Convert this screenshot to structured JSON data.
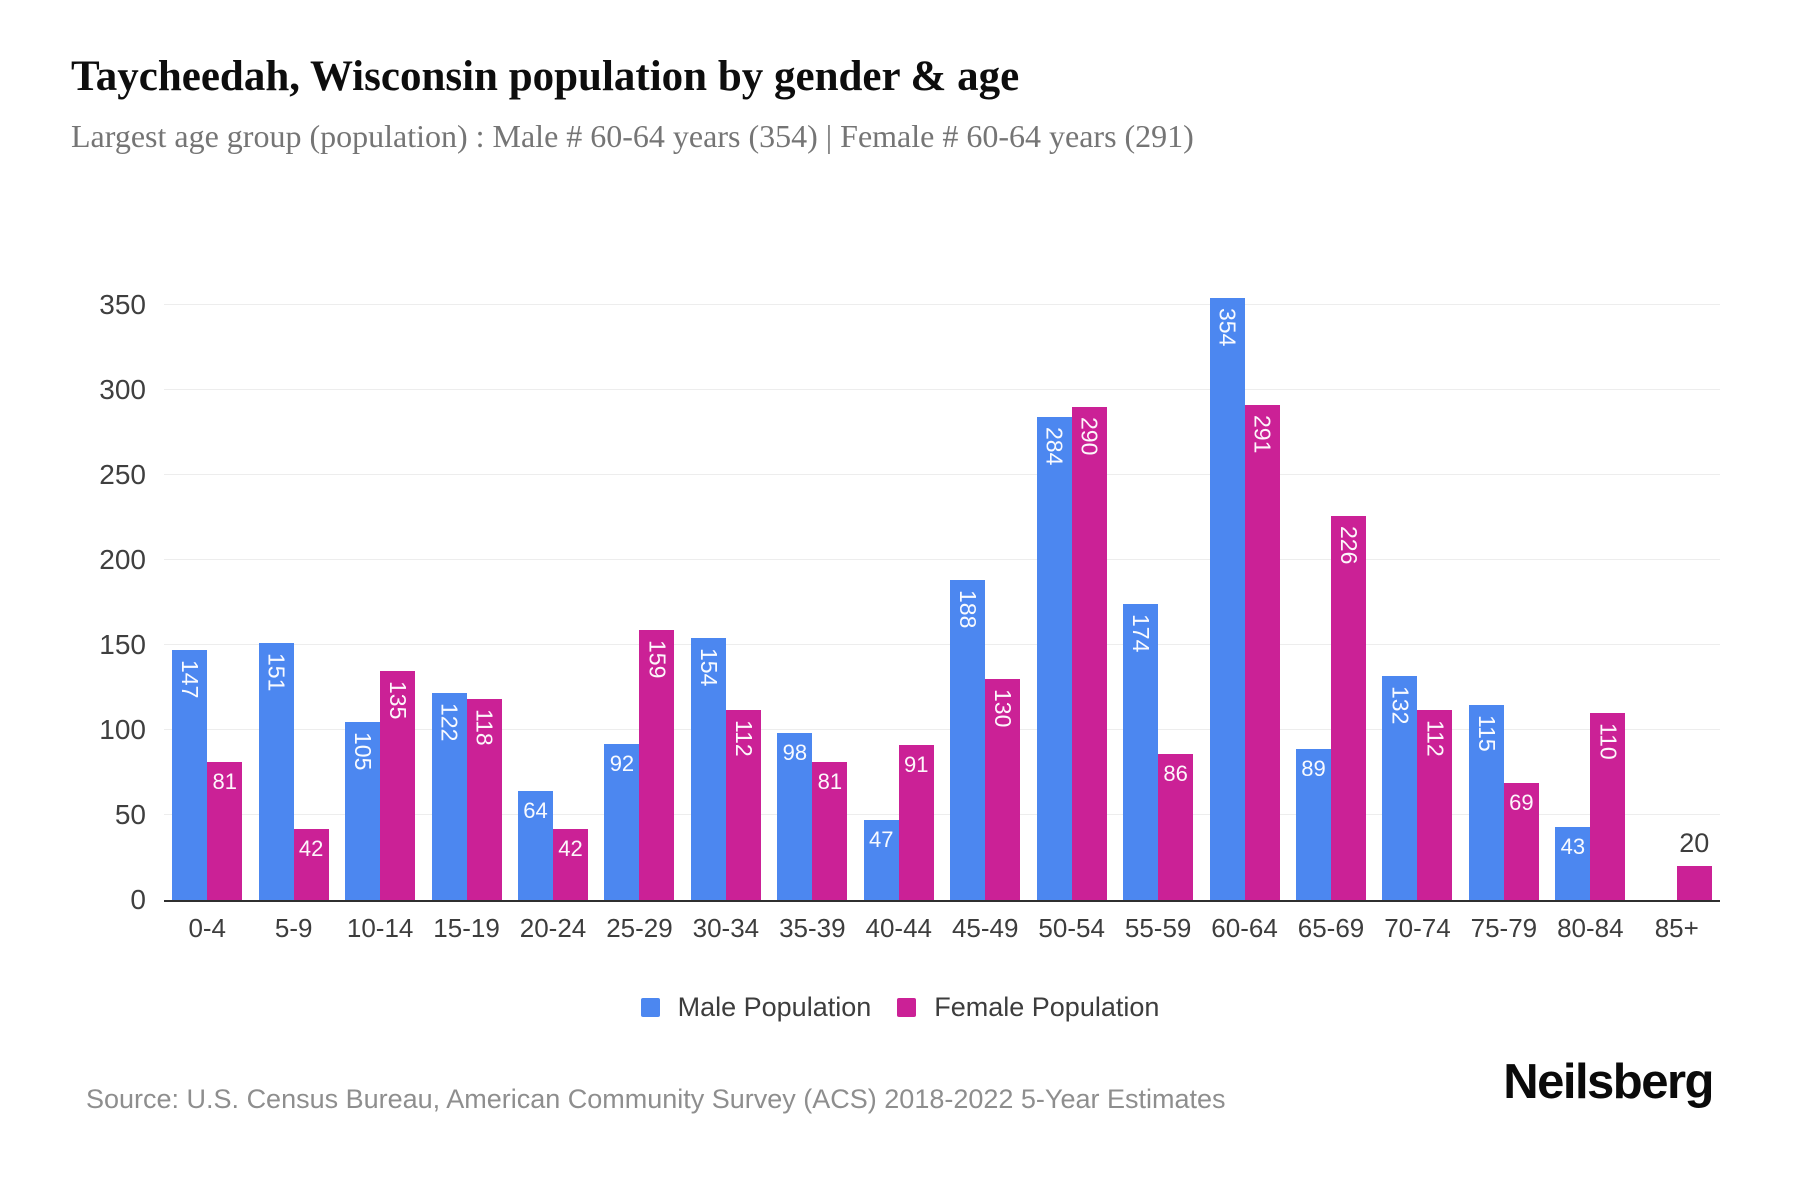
{
  "header": {
    "title": "Taycheedah, Wisconsin population by gender & age",
    "subtitle": "Largest age group (population) : Male # 60-64 years (354) | Female # 60-64 years (291)"
  },
  "chart_data": {
    "type": "bar",
    "title": "Taycheedah, Wisconsin population by gender & age",
    "categories": [
      "0-4",
      "5-9",
      "10-14",
      "15-19",
      "20-24",
      "25-29",
      "30-34",
      "35-39",
      "40-44",
      "45-49",
      "50-54",
      "55-59",
      "60-64",
      "65-69",
      "70-74",
      "75-79",
      "80-84",
      "85+"
    ],
    "series": [
      {
        "name": "Male Population",
        "color": "#4c87f0",
        "values": [
          147,
          151,
          105,
          122,
          64,
          92,
          154,
          98,
          47,
          188,
          284,
          174,
          354,
          89,
          132,
          115,
          43,
          0
        ]
      },
      {
        "name": "Female Population",
        "color": "#cb2196",
        "values": [
          81,
          42,
          135,
          118,
          42,
          159,
          112,
          81,
          91,
          130,
          290,
          86,
          291,
          226,
          112,
          69,
          110,
          20
        ]
      }
    ],
    "xlabel": "",
    "ylabel": "",
    "ylim": [
      0,
      350
    ],
    "ytick_step": 50,
    "grid": "horizontal-only",
    "legend_position": "bottom",
    "bar_value_labels": "shown-inside-bars-white-rotated-when-3-digits-outside-dark-when-bar-too-short"
  },
  "colors": {
    "male": "#4c87f0",
    "female": "#cb2196",
    "grid": "#ededed",
    "axis": "#2f2f2f",
    "tick_text": "#3d3d3d",
    "subtitle_text": "#757575",
    "source_text": "#8e8e8e"
  },
  "footer": {
    "source": "Source: U.S. Census Bureau, American Community Survey (ACS) 2018-2022 5-Year Estimates",
    "brand": "Neilsberg"
  }
}
